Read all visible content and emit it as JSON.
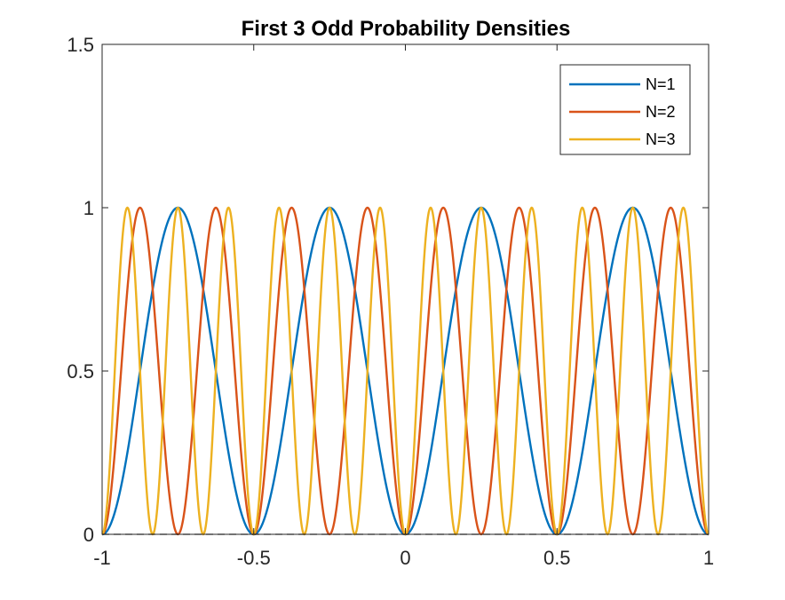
{
  "chart_data": {
    "type": "line",
    "title": "First 3 Odd Probability Densities",
    "xlabel": "",
    "ylabel": "",
    "xlim": [
      -1,
      1
    ],
    "ylim": [
      0,
      1.5
    ],
    "xticks": [
      -1,
      -0.5,
      0,
      0.5,
      1
    ],
    "xtick_labels": [
      "-1",
      "-0.5",
      "0",
      "0.5",
      "1"
    ],
    "yticks": [
      0,
      0.5,
      1,
      1.5
    ],
    "ytick_labels": [
      "0",
      "0.5",
      "1",
      "1.5"
    ],
    "grid": false,
    "legend": {
      "position": "top-right"
    },
    "baseline": {
      "y": 0,
      "style": "dashed",
      "color": "#000000"
    },
    "series": [
      {
        "name": "N=1",
        "color": "#0072BD",
        "function": "sin^2(2*pi*N*x)",
        "n": 1
      },
      {
        "name": "N=2",
        "color": "#D95319",
        "function": "sin^2(2*pi*N*x)",
        "n": 2
      },
      {
        "name": "N=3",
        "color": "#EDB120",
        "function": "sin^2(2*pi*N*x)",
        "n": 3
      }
    ]
  }
}
